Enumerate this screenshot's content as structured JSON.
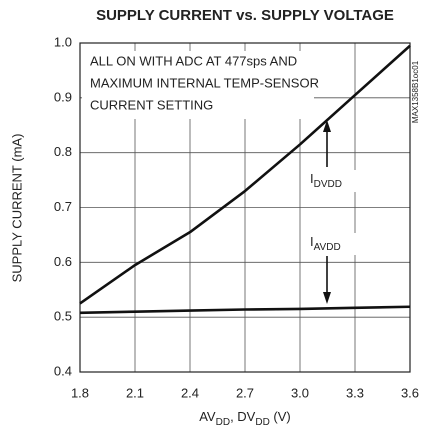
{
  "chart_data": {
    "type": "line",
    "title": "SUPPLY CURRENT vs. SUPPLY VOLTAGE",
    "y_label": "SUPPLY CURRENT (mA)",
    "x_label": [
      "AV",
      "DD",
      ", DV",
      "DD",
      " (V)"
    ],
    "side_code": "MAX1358B1oc01",
    "note": [
      "ALL ON WITH ADC AT 477sps AND",
      "MAXIMUM INTERNAL TEMP-SENSOR",
      "CURRENT SETTING"
    ],
    "x": [
      1.8,
      2.1,
      2.4,
      2.7,
      3.0,
      3.3,
      3.6
    ],
    "series": [
      {
        "name": [
          "I",
          "DVDD"
        ],
        "color": "#111111",
        "values": [
          0.525,
          0.595,
          0.655,
          0.73,
          0.815,
          0.905,
          0.995
        ]
      },
      {
        "name": [
          "I",
          "AVDD"
        ],
        "color": "#111111",
        "values": [
          0.508,
          0.51,
          0.512,
          0.514,
          0.515,
          0.517,
          0.519
        ]
      }
    ],
    "xlim": [
      1.8,
      3.6
    ],
    "xticks": [
      1.8,
      2.1,
      2.4,
      2.7,
      {
        "value": 3,
        "label": "3.0"
      },
      3.3,
      3.6
    ],
    "ylim": [
      0.4,
      1
    ],
    "yticks": [
      0.4,
      0.5,
      0.6,
      0.7,
      0.8,
      0.9,
      {
        "value": 1,
        "label": "1.0"
      }
    ],
    "grid": true
  }
}
